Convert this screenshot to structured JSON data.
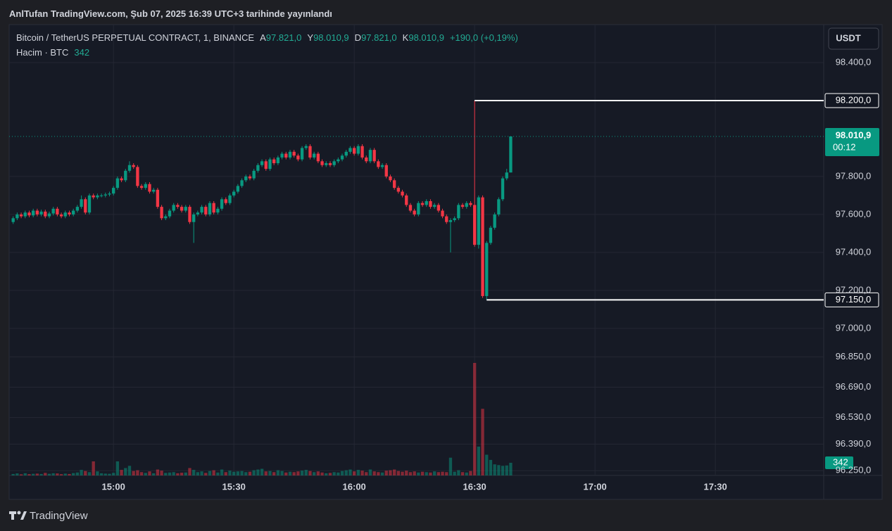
{
  "publisher": "AnlTufan TradingView.com, Şub 07, 2025 16:39 UTC+3 tarihinde yayınlandı",
  "brand": "TradingView",
  "currency": "USDT",
  "legend": {
    "symbol": "Bitcoin / TetherUS PERPETUAL CONTRACT, 1, BINANCE",
    "open_label": "A",
    "open": "97.821,0",
    "high_label": "Y",
    "high": "98.010,9",
    "low_label": "D",
    "low": "97.821,0",
    "close_label": "K",
    "close": "98.010,9",
    "change": "+190,0 (+0,19%)",
    "volume_title": "Hacim · BTC"
  },
  "chart_data": {
    "type": "candlestick",
    "up_color": "#089981",
    "down_color": "#f23645",
    "grid": true,
    "xlim": [
      "14:34",
      "17:57"
    ],
    "xticks": [
      "15:00",
      "15:30",
      "16:00",
      "16:30",
      "17:00",
      "17:30"
    ],
    "ylim": [
      96225,
      98600
    ],
    "yticks": [
      {
        "value": 98400,
        "label": "98.400,0"
      },
      {
        "value": 97800,
        "label": "97.800,0"
      },
      {
        "value": 97600,
        "label": "97.600,0"
      },
      {
        "value": 97400,
        "label": "97.400,0"
      },
      {
        "value": 97200,
        "label": "97.200,0"
      },
      {
        "value": 97000,
        "label": "97.000,0"
      },
      {
        "value": 96850,
        "label": "96.850,0"
      },
      {
        "value": 96690,
        "label": "96.690,0"
      },
      {
        "value": 96530,
        "label": "96.530,0"
      },
      {
        "value": 96390,
        "label": "96.390,0"
      },
      {
        "value": 96250,
        "label": "96.250,0"
      }
    ],
    "annotations": [
      {
        "x": "16:30",
        "value": 98200,
        "label": "98.200,0"
      },
      {
        "x": "16:33",
        "value": 97150,
        "label": "97.150,0"
      }
    ],
    "last_price": {
      "value": 98010.9,
      "label": "98.010,9",
      "countdown": "00:12"
    },
    "x": [
      "14:35",
      "14:36",
      "14:37",
      "14:38",
      "14:39",
      "14:40",
      "14:41",
      "14:42",
      "14:43",
      "14:44",
      "14:45",
      "14:46",
      "14:47",
      "14:48",
      "14:49",
      "14:50",
      "14:51",
      "14:52",
      "14:53",
      "14:54",
      "14:55",
      "14:56",
      "14:57",
      "14:58",
      "14:59",
      "15:00",
      "15:01",
      "15:02",
      "15:03",
      "15:04",
      "15:05",
      "15:06",
      "15:07",
      "15:08",
      "15:09",
      "15:10",
      "15:11",
      "15:12",
      "15:13",
      "15:14",
      "15:15",
      "15:16",
      "15:17",
      "15:18",
      "15:19",
      "15:20",
      "15:21",
      "15:22",
      "15:23",
      "15:24",
      "15:25",
      "15:26",
      "15:27",
      "15:28",
      "15:29",
      "15:30",
      "15:31",
      "15:32",
      "15:33",
      "15:34",
      "15:35",
      "15:36",
      "15:37",
      "15:38",
      "15:39",
      "15:40",
      "15:41",
      "15:42",
      "15:43",
      "15:44",
      "15:45",
      "15:46",
      "15:47",
      "15:48",
      "15:49",
      "15:50",
      "15:51",
      "15:52",
      "15:53",
      "15:54",
      "15:55",
      "15:56",
      "15:57",
      "15:58",
      "15:59",
      "16:00",
      "16:01",
      "16:02",
      "16:03",
      "16:04",
      "16:05",
      "16:06",
      "16:07",
      "16:08",
      "16:09",
      "16:10",
      "16:11",
      "16:12",
      "16:13",
      "16:14",
      "16:15",
      "16:16",
      "16:17",
      "16:18",
      "16:19",
      "16:20",
      "16:21",
      "16:22",
      "16:23",
      "16:24",
      "16:25",
      "16:26",
      "16:27",
      "16:28",
      "16:29",
      "16:30",
      "16:31",
      "16:32",
      "16:33",
      "16:34",
      "16:35",
      "16:36",
      "16:37",
      "16:38",
      "16:39"
    ],
    "ohlc": [
      [
        97560,
        97590,
        97550,
        97580
      ],
      [
        97580,
        97610,
        97570,
        97600
      ],
      [
        97600,
        97610,
        97580,
        97590
      ],
      [
        97590,
        97620,
        97580,
        97610
      ],
      [
        97610,
        97620,
        97585,
        97595
      ],
      [
        97595,
        97630,
        97585,
        97620
      ],
      [
        97620,
        97630,
        97590,
        97600
      ],
      [
        97600,
        97625,
        97590,
        97615
      ],
      [
        97615,
        97625,
        97580,
        97590
      ],
      [
        97590,
        97615,
        97580,
        97605
      ],
      [
        97605,
        97640,
        97595,
        97630
      ],
      [
        97630,
        97640,
        97590,
        97600
      ],
      [
        97600,
        97610,
        97580,
        97590
      ],
      [
        97590,
        97620,
        97580,
        97610
      ],
      [
        97610,
        97620,
        97590,
        97600
      ],
      [
        97600,
        97630,
        97590,
        97620
      ],
      [
        97620,
        97650,
        97610,
        97640
      ],
      [
        97640,
        97700,
        97630,
        97680
      ],
      [
        97680,
        97690,
        97600,
        97610
      ],
      [
        97610,
        97710,
        97600,
        97700
      ],
      [
        97700,
        97710,
        97680,
        97690
      ],
      [
        97690,
        97710,
        97680,
        97700
      ],
      [
        97700,
        97710,
        97690,
        97700
      ],
      [
        97700,
        97715,
        97690,
        97705
      ],
      [
        97705,
        97720,
        97695,
        97710
      ],
      [
        97710,
        97750,
        97700,
        97740
      ],
      [
        97740,
        97800,
        97730,
        97790
      ],
      [
        97790,
        97800,
        97770,
        97780
      ],
      [
        97780,
        97840,
        97770,
        97830
      ],
      [
        97830,
        97880,
        97820,
        97860
      ],
      [
        97860,
        97870,
        97840,
        97850
      ],
      [
        97850,
        97860,
        97740,
        97750
      ],
      [
        97750,
        97760,
        97730,
        97740
      ],
      [
        97740,
        97770,
        97730,
        97760
      ],
      [
        97760,
        97770,
        97710,
        97720
      ],
      [
        97720,
        97740,
        97710,
        97730
      ],
      [
        97730,
        97740,
        97630,
        97640
      ],
      [
        97640,
        97650,
        97570,
        97580
      ],
      [
        97580,
        97600,
        97570,
        97590
      ],
      [
        97590,
        97630,
        97580,
        97620
      ],
      [
        97620,
        97660,
        97610,
        97650
      ],
      [
        97650,
        97660,
        97630,
        97640
      ],
      [
        97640,
        97650,
        97610,
        97620
      ],
      [
        97620,
        97650,
        97610,
        97640
      ],
      [
        97640,
        97650,
        97550,
        97560
      ],
      [
        97560,
        97610,
        97450,
        97600
      ],
      [
        97600,
        97620,
        97590,
        97610
      ],
      [
        97610,
        97650,
        97600,
        97640
      ],
      [
        97640,
        97650,
        97590,
        97600
      ],
      [
        97600,
        97670,
        97590,
        97660
      ],
      [
        97660,
        97670,
        97600,
        97610
      ],
      [
        97610,
        97640,
        97600,
        97630
      ],
      [
        97630,
        97690,
        97620,
        97680
      ],
      [
        97680,
        97690,
        97650,
        97660
      ],
      [
        97660,
        97710,
        97650,
        97700
      ],
      [
        97700,
        97730,
        97690,
        97720
      ],
      [
        97720,
        97760,
        97710,
        97750
      ],
      [
        97750,
        97790,
        97740,
        97780
      ],
      [
        97780,
        97810,
        97770,
        97800
      ],
      [
        97800,
        97810,
        97780,
        97790
      ],
      [
        97790,
        97840,
        97780,
        97830
      ],
      [
        97830,
        97870,
        97820,
        97860
      ],
      [
        97860,
        97890,
        97850,
        97880
      ],
      [
        97880,
        97890,
        97830,
        97840
      ],
      [
        97840,
        97900,
        97830,
        97890
      ],
      [
        97890,
        97900,
        97860,
        97870
      ],
      [
        97870,
        97910,
        97860,
        97900
      ],
      [
        97900,
        97930,
        97890,
        97920
      ],
      [
        97920,
        97930,
        97890,
        97900
      ],
      [
        97900,
        97940,
        97890,
        97930
      ],
      [
        97930,
        97940,
        97900,
        97910
      ],
      [
        97910,
        97920,
        97880,
        97890
      ],
      [
        97890,
        97960,
        97880,
        97950
      ],
      [
        97950,
        97970,
        97940,
        97960
      ],
      [
        97960,
        97970,
        97890,
        97900
      ],
      [
        97900,
        97930,
        97890,
        97920
      ],
      [
        97920,
        97930,
        97870,
        97880
      ],
      [
        97880,
        97890,
        97850,
        97860
      ],
      [
        97860,
        97880,
        97850,
        97870
      ],
      [
        97870,
        97880,
        97850,
        97860
      ],
      [
        97860,
        97890,
        97850,
        97880
      ],
      [
        97880,
        97900,
        97870,
        97890
      ],
      [
        97890,
        97920,
        97880,
        97910
      ],
      [
        97910,
        97940,
        97900,
        97930
      ],
      [
        97930,
        97960,
        97920,
        97950
      ],
      [
        97950,
        97960,
        97910,
        97920
      ],
      [
        97920,
        97970,
        97910,
        97960
      ],
      [
        97960,
        97970,
        97890,
        97900
      ],
      [
        97900,
        97910,
        97870,
        97880
      ],
      [
        97880,
        97950,
        97870,
        97940
      ],
      [
        97940,
        97950,
        97870,
        97880
      ],
      [
        97880,
        97890,
        97840,
        97850
      ],
      [
        97850,
        97870,
        97840,
        97860
      ],
      [
        97860,
        97870,
        97790,
        97800
      ],
      [
        97800,
        97810,
        97770,
        97780
      ],
      [
        97780,
        97790,
        97730,
        97740
      ],
      [
        97740,
        97750,
        97710,
        97720
      ],
      [
        97720,
        97730,
        97690,
        97700
      ],
      [
        97700,
        97710,
        97640,
        97650
      ],
      [
        97650,
        97660,
        97610,
        97620
      ],
      [
        97620,
        97630,
        97590,
        97600
      ],
      [
        97600,
        97670,
        97590,
        97660
      ],
      [
        97660,
        97670,
        97640,
        97650
      ],
      [
        97650,
        97680,
        97640,
        97670
      ],
      [
        97670,
        97680,
        97630,
        97640
      ],
      [
        97640,
        97660,
        97630,
        97650
      ],
      [
        97650,
        97660,
        97610,
        97620
      ],
      [
        97620,
        97630,
        97580,
        97590
      ],
      [
        97590,
        97600,
        97550,
        97560
      ],
      [
        97560,
        97580,
        97400,
        97570
      ],
      [
        97570,
        97590,
        97560,
        97580
      ],
      [
        97580,
        97660,
        97570,
        97650
      ],
      [
        97650,
        97660,
        97630,
        97640
      ],
      [
        97640,
        97670,
        97630,
        97660
      ],
      [
        97660,
        97670,
        97640,
        97650
      ],
      [
        97650,
        98200,
        97430,
        97440
      ],
      [
        97440,
        97700,
        97420,
        97690
      ],
      [
        97690,
        97700,
        97160,
        97170
      ],
      [
        97170,
        97460,
        97150,
        97450
      ],
      [
        97450,
        97540,
        97440,
        97530
      ],
      [
        97530,
        97610,
        97520,
        97600
      ],
      [
        97600,
        97690,
        97590,
        97680
      ],
      [
        97680,
        97800,
        97670,
        97790
      ],
      [
        97790,
        97840,
        97780,
        97821
      ],
      [
        97821,
        98010.9,
        97821,
        98010.9
      ]
    ],
    "volumes": [
      40,
      55,
      30,
      60,
      35,
      45,
      50,
      40,
      70,
      45,
      60,
      55,
      35,
      50,
      40,
      65,
      80,
      150,
      120,
      90,
      380,
      110,
      60,
      50,
      45,
      70,
      380,
      150,
      200,
      260,
      120,
      140,
      90,
      70,
      110,
      60,
      160,
      130,
      70,
      80,
      90,
      60,
      75,
      80,
      200,
      150,
      90,
      110,
      70,
      120,
      140,
      80,
      160,
      90,
      130,
      100,
      110,
      120,
      90,
      100,
      140,
      160,
      180,
      110,
      120,
      90,
      140,
      120,
      80,
      100,
      90,
      110,
      130,
      150,
      120,
      90,
      110,
      80,
      60,
      70,
      90,
      80,
      120,
      140,
      160,
      110,
      150,
      130,
      90,
      160,
      110,
      90,
      80,
      130,
      140,
      160,
      120,
      100,
      130,
      90,
      110,
      80,
      100,
      90,
      80,
      110,
      90,
      100,
      90,
      480,
      100,
      140,
      90,
      80,
      120,
      3040,
      780,
      1800,
      560,
      420,
      300,
      280,
      260,
      270,
      342
    ]
  }
}
